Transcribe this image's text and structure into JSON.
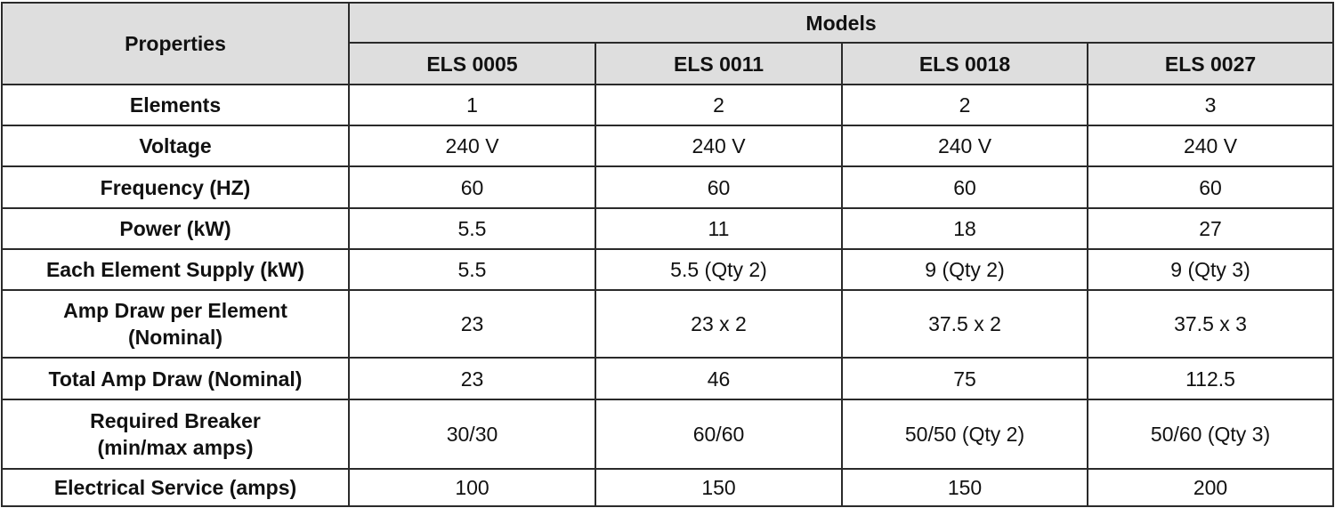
{
  "header": {
    "properties": "Properties",
    "models": "Models",
    "model_names": [
      "ELS 0005",
      "ELS 0011",
      "ELS 0018",
      "ELS 0027"
    ]
  },
  "rows": [
    {
      "label": "Elements",
      "values": [
        "1",
        "2",
        "2",
        "3"
      ]
    },
    {
      "label": "Voltage",
      "values": [
        "240 V",
        "240 V",
        "240 V",
        "240 V"
      ]
    },
    {
      "label": "Frequency (HZ)",
      "values": [
        "60",
        "60",
        "60",
        "60"
      ]
    },
    {
      "label": "Power (kW)",
      "values": [
        "5.5",
        "11",
        "18",
        "27"
      ]
    },
    {
      "label": "Each Element Supply (kW)",
      "values": [
        "5.5",
        "5.5 (Qty 2)",
        "9 (Qty 2)",
        "9 (Qty 3)"
      ]
    },
    {
      "label": "Amp Draw per Element\n(Nominal)",
      "values": [
        "23",
        "23 x 2",
        "37.5 x 2",
        "37.5 x 3"
      ]
    },
    {
      "label": "Total Amp Draw (Nominal)",
      "values": [
        "23",
        "46",
        "75",
        "112.5"
      ]
    },
    {
      "label": "Required Breaker\n(min/max amps)",
      "values": [
        "30/30",
        "60/60",
        "50/50 (Qty 2)",
        "50/60 (Qty 3)"
      ]
    },
    {
      "label": "Electrical Service (amps)",
      "values": [
        "100",
        "150",
        "150",
        "200"
      ]
    }
  ]
}
